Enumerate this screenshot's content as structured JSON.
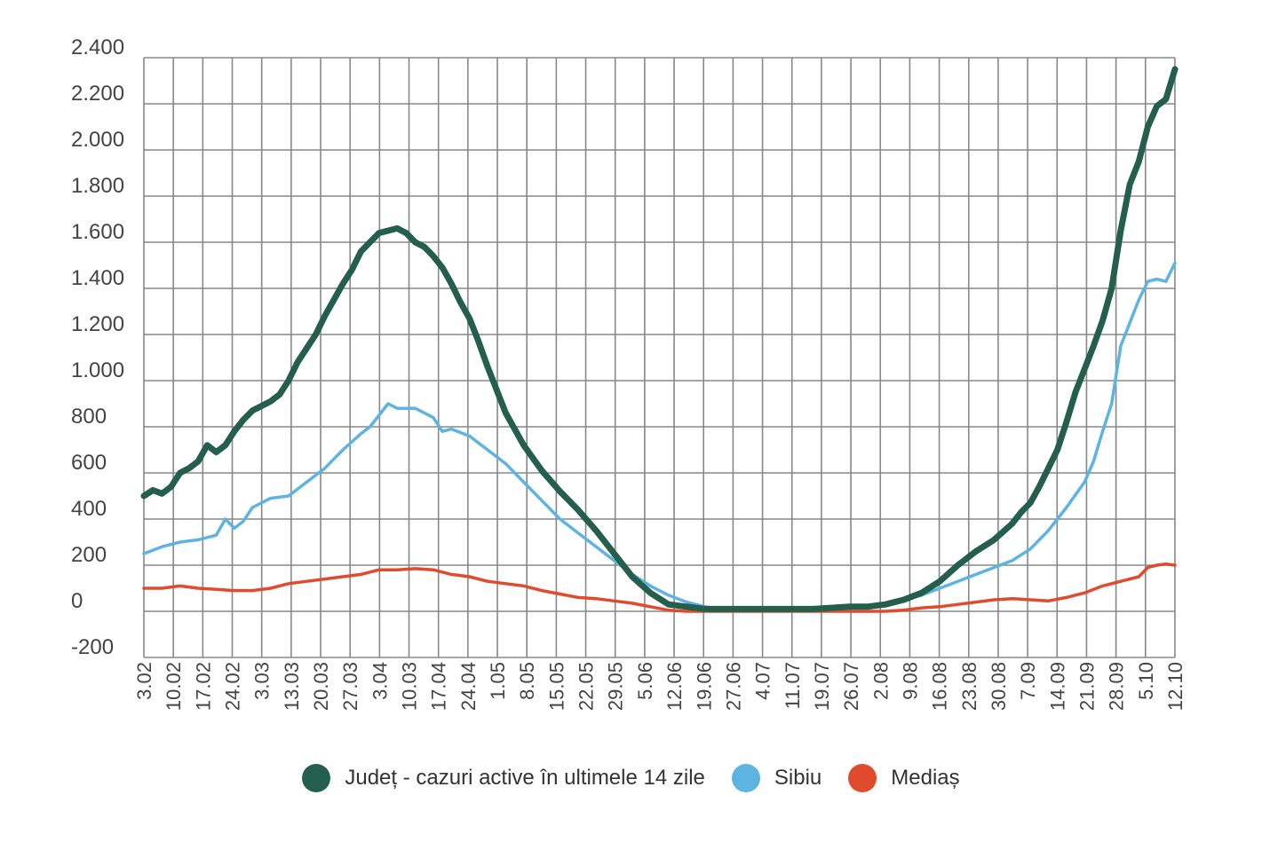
{
  "chart_data": {
    "type": "line",
    "title": "",
    "xlabel": "",
    "ylabel": "",
    "ylim": [
      -200,
      2400
    ],
    "yticks": [
      2400,
      2200,
      2000,
      1800,
      1600,
      1400,
      1200,
      1000,
      800,
      600,
      400,
      200,
      0,
      -200
    ],
    "ytick_labels": [
      "2.400",
      "2.200",
      "2.000",
      "1.800",
      "1.600",
      "1.400",
      "1.200",
      "1.000",
      "800",
      "600",
      "400",
      "200",
      "0",
      "-200"
    ],
    "x_tick_labels": [
      "3.02",
      "10.02",
      "17.02",
      "24.02",
      "3.03",
      "13.03",
      "20.03",
      "27.03",
      "3.04",
      "10.03",
      "17.04",
      "24.04",
      "1.05",
      "8.05",
      "15.05",
      "22.05",
      "29.05",
      "5.06",
      "12.06",
      "19.06",
      "27.06",
      "4.07",
      "11.07",
      "19.07",
      "26.07",
      "2.08",
      "9.08",
      "16.08",
      "23.08",
      "30.08",
      "7.09",
      "14.09",
      "21.09",
      "28.09",
      "5.10",
      "12.10"
    ],
    "x_index_range": [
      0,
      35
    ],
    "grid": true,
    "legend_position": "bottom-center",
    "series": [
      {
        "name": "Județ - cazuri active în ultimele 14 zile",
        "color": "#245e4c",
        "points": [
          [
            0,
            500
          ],
          [
            0.5,
            525
          ],
          [
            1,
            510
          ],
          [
            1.5,
            540
          ],
          [
            2,
            600
          ],
          [
            2.5,
            620
          ],
          [
            3,
            650
          ],
          [
            3.5,
            720
          ],
          [
            4,
            690
          ],
          [
            4.5,
            720
          ],
          [
            5,
            780
          ],
          [
            5.5,
            830
          ],
          [
            6,
            870
          ],
          [
            6.5,
            890
          ],
          [
            7,
            910
          ],
          [
            7.5,
            940
          ],
          [
            8,
            1000
          ],
          [
            8.5,
            1080
          ],
          [
            9,
            1140
          ],
          [
            9.5,
            1200
          ],
          [
            10,
            1280
          ],
          [
            10.5,
            1350
          ],
          [
            11,
            1420
          ],
          [
            11.5,
            1480
          ],
          [
            12,
            1560
          ],
          [
            12.5,
            1600
          ],
          [
            13,
            1640
          ],
          [
            13.5,
            1650
          ],
          [
            14,
            1660
          ],
          [
            14.5,
            1640
          ],
          [
            15,
            1600
          ],
          [
            15.5,
            1580
          ],
          [
            16,
            1540
          ],
          [
            16.5,
            1490
          ],
          [
            17,
            1420
          ],
          [
            17.5,
            1340
          ],
          [
            18,
            1270
          ],
          [
            18.5,
            1170
          ],
          [
            19,
            1060
          ],
          [
            19.5,
            960
          ],
          [
            20,
            860
          ],
          [
            21,
            720
          ],
          [
            22,
            610
          ],
          [
            23,
            520
          ],
          [
            24,
            440
          ],
          [
            25,
            350
          ],
          [
            26,
            250
          ],
          [
            27,
            150
          ],
          [
            28,
            80
          ],
          [
            29,
            30
          ],
          [
            30,
            20
          ],
          [
            31,
            10
          ],
          [
            32,
            10
          ],
          [
            33,
            10
          ],
          [
            34,
            10
          ],
          [
            35,
            10
          ],
          [
            36,
            10
          ],
          [
            37,
            10
          ],
          [
            38,
            15
          ],
          [
            39,
            20
          ],
          [
            40,
            20
          ],
          [
            41,
            30
          ],
          [
            42,
            50
          ],
          [
            43,
            80
          ],
          [
            44,
            130
          ],
          [
            45,
            200
          ],
          [
            46,
            260
          ],
          [
            47,
            310
          ],
          [
            48,
            380
          ],
          [
            48.5,
            430
          ],
          [
            49,
            470
          ],
          [
            49.5,
            540
          ],
          [
            50,
            620
          ],
          [
            50.5,
            700
          ],
          [
            51,
            820
          ],
          [
            51.5,
            950
          ],
          [
            52,
            1050
          ],
          [
            52.5,
            1150
          ],
          [
            53,
            1260
          ],
          [
            53.5,
            1400
          ],
          [
            54,
            1650
          ],
          [
            54.5,
            1850
          ],
          [
            55,
            1950
          ],
          [
            55.5,
            2100
          ],
          [
            56,
            2190
          ],
          [
            56.5,
            2220
          ],
          [
            57,
            2350
          ]
        ]
      },
      {
        "name": "Sibiu",
        "color": "#5db4e2",
        "points": [
          [
            0,
            250
          ],
          [
            1,
            280
          ],
          [
            2,
            300
          ],
          [
            3,
            310
          ],
          [
            4,
            330
          ],
          [
            4.5,
            400
          ],
          [
            5,
            360
          ],
          [
            5.5,
            390
          ],
          [
            6,
            450
          ],
          [
            7,
            490
          ],
          [
            8,
            500
          ],
          [
            9,
            560
          ],
          [
            10,
            620
          ],
          [
            11,
            700
          ],
          [
            12,
            770
          ],
          [
            12.5,
            800
          ],
          [
            13,
            850
          ],
          [
            13.5,
            900
          ],
          [
            14,
            880
          ],
          [
            15,
            880
          ],
          [
            16,
            840
          ],
          [
            16.5,
            780
          ],
          [
            17,
            790
          ],
          [
            18,
            760
          ],
          [
            19,
            700
          ],
          [
            20,
            640
          ],
          [
            21,
            560
          ],
          [
            22,
            480
          ],
          [
            23,
            400
          ],
          [
            24,
            340
          ],
          [
            25,
            280
          ],
          [
            26,
            220
          ],
          [
            27,
            160
          ],
          [
            28,
            110
          ],
          [
            29,
            70
          ],
          [
            30,
            40
          ],
          [
            31,
            20
          ],
          [
            32,
            10
          ],
          [
            33,
            10
          ],
          [
            34,
            8
          ],
          [
            35,
            8
          ],
          [
            36,
            8
          ],
          [
            37,
            8
          ],
          [
            38,
            10
          ],
          [
            39,
            15
          ],
          [
            40,
            20
          ],
          [
            41,
            30
          ],
          [
            42,
            50
          ],
          [
            43,
            70
          ],
          [
            44,
            100
          ],
          [
            45,
            130
          ],
          [
            46,
            160
          ],
          [
            47,
            190
          ],
          [
            48,
            220
          ],
          [
            49,
            270
          ],
          [
            50,
            350
          ],
          [
            51,
            450
          ],
          [
            52,
            560
          ],
          [
            52.5,
            650
          ],
          [
            53,
            780
          ],
          [
            53.5,
            900
          ],
          [
            54,
            1150
          ],
          [
            54.5,
            1250
          ],
          [
            55,
            1350
          ],
          [
            55.5,
            1430
          ],
          [
            56,
            1440
          ],
          [
            56.5,
            1430
          ],
          [
            57,
            1510
          ]
        ]
      },
      {
        "name": "Mediaș",
        "color": "#e04b2e",
        "points": [
          [
            0,
            100
          ],
          [
            1,
            100
          ],
          [
            2,
            110
          ],
          [
            3,
            100
          ],
          [
            4,
            95
          ],
          [
            5,
            90
          ],
          [
            6,
            90
          ],
          [
            7,
            100
          ],
          [
            8,
            120
          ],
          [
            9,
            130
          ],
          [
            10,
            140
          ],
          [
            11,
            150
          ],
          [
            12,
            160
          ],
          [
            13,
            180
          ],
          [
            14,
            180
          ],
          [
            15,
            185
          ],
          [
            16,
            180
          ],
          [
            17,
            160
          ],
          [
            18,
            150
          ],
          [
            19,
            130
          ],
          [
            20,
            120
          ],
          [
            21,
            110
          ],
          [
            22,
            90
          ],
          [
            23,
            75
          ],
          [
            24,
            60
          ],
          [
            25,
            55
          ],
          [
            26,
            45
          ],
          [
            27,
            35
          ],
          [
            28,
            20
          ],
          [
            29,
            5
          ],
          [
            30,
            0
          ],
          [
            31,
            0
          ],
          [
            32,
            0
          ],
          [
            33,
            0
          ],
          [
            34,
            0
          ],
          [
            35,
            0
          ],
          [
            36,
            0
          ],
          [
            37,
            0
          ],
          [
            38,
            0
          ],
          [
            39,
            0
          ],
          [
            40,
            0
          ],
          [
            41,
            0
          ],
          [
            42,
            5
          ],
          [
            43,
            15
          ],
          [
            44,
            20
          ],
          [
            45,
            30
          ],
          [
            46,
            40
          ],
          [
            47,
            50
          ],
          [
            48,
            55
          ],
          [
            49,
            50
          ],
          [
            50,
            45
          ],
          [
            51,
            60
          ],
          [
            52,
            80
          ],
          [
            53,
            110
          ],
          [
            54,
            130
          ],
          [
            55,
            150
          ],
          [
            55.5,
            190
          ],
          [
            56,
            200
          ],
          [
            56.5,
            205
          ],
          [
            57,
            200
          ]
        ]
      }
    ]
  }
}
